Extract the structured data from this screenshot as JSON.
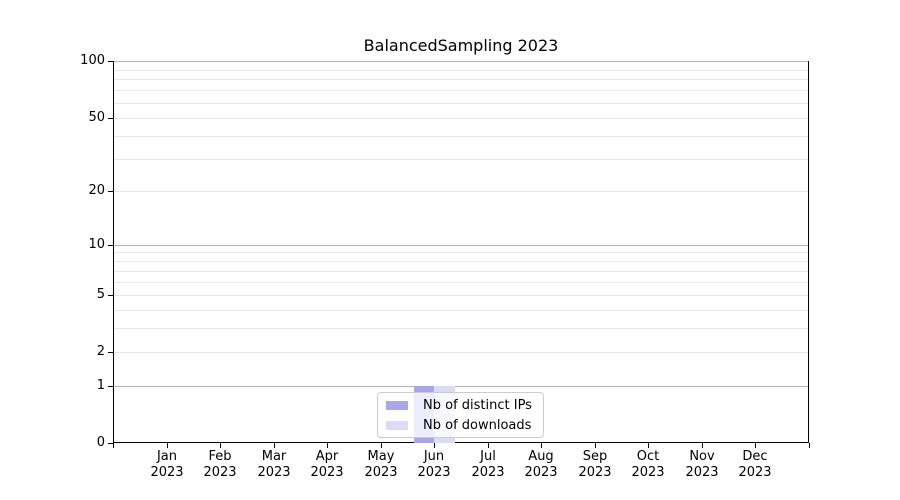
{
  "chart_data": {
    "type": "bar",
    "title": "BalancedSampling 2023",
    "categories": [
      "Jan 2023",
      "Feb 2023",
      "Mar 2023",
      "Apr 2023",
      "May 2023",
      "Jun 2023",
      "Jul 2023",
      "Aug 2023",
      "Sep 2023",
      "Oct 2023",
      "Nov 2023",
      "Dec 2023"
    ],
    "series": [
      {
        "name": "Nb of distinct IPs",
        "color": "#a7a7eb",
        "values": [
          0,
          0,
          0,
          0,
          0,
          1,
          0,
          0,
          0,
          0,
          0,
          0
        ]
      },
      {
        "name": "Nb of downloads",
        "color": "#dcdcf6",
        "values": [
          0,
          0,
          0,
          0,
          0,
          1,
          0,
          0,
          0,
          0,
          0,
          0
        ]
      }
    ],
    "xlabel": "",
    "ylabel": "",
    "ylim": [
      0,
      100
    ],
    "y_scale": "log1p",
    "y_tick_labels": [
      0,
      1,
      2,
      5,
      10,
      20,
      50,
      100
    ],
    "y_major_gridlines": [
      1,
      10,
      100
    ],
    "y_minor_gridlines": [
      2,
      3,
      4,
      5,
      6,
      7,
      8,
      9,
      20,
      30,
      40,
      50,
      60,
      70,
      80,
      90
    ],
    "grid": "on",
    "legend_position": "lower center"
  },
  "colors": {
    "major_grid": "#b4b4b4",
    "minor_grid": "#e7e7e7",
    "spine": "#000000",
    "legend_border": "#cccccc"
  }
}
